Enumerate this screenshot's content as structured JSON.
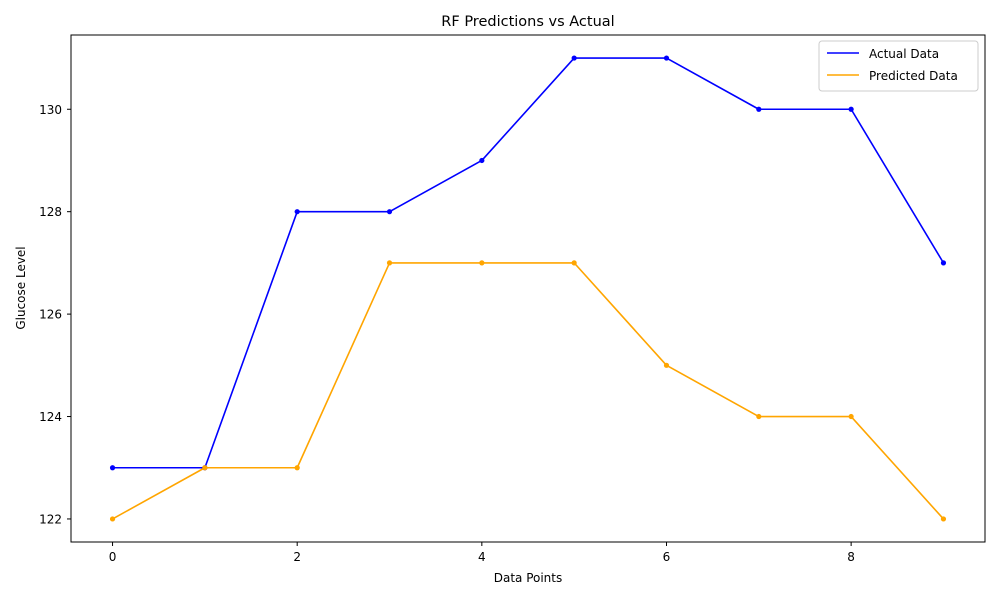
{
  "chart_data": {
    "type": "line",
    "title": "RF Predictions vs Actual",
    "xlabel": "Data Points",
    "ylabel": "Glucose Level",
    "x": [
      0,
      1,
      2,
      3,
      4,
      5,
      6,
      7,
      8,
      9
    ],
    "xlim": [
      -0.45,
      9.45
    ],
    "ylim": [
      121.55,
      131.45
    ],
    "x_ticks": [
      0,
      2,
      4,
      6,
      8
    ],
    "y_ticks": [
      122,
      124,
      126,
      128,
      130
    ],
    "grid": false,
    "legend_position": "top-right",
    "series": [
      {
        "name": "Actual Data",
        "color": "#0000ff",
        "values": [
          123,
          123,
          128,
          128,
          129,
          131,
          131,
          130,
          130,
          127
        ]
      },
      {
        "name": "Predicted Data",
        "color": "#ffa500",
        "values": [
          122,
          123,
          123,
          127,
          127,
          127,
          125,
          124,
          124,
          122
        ]
      }
    ]
  }
}
